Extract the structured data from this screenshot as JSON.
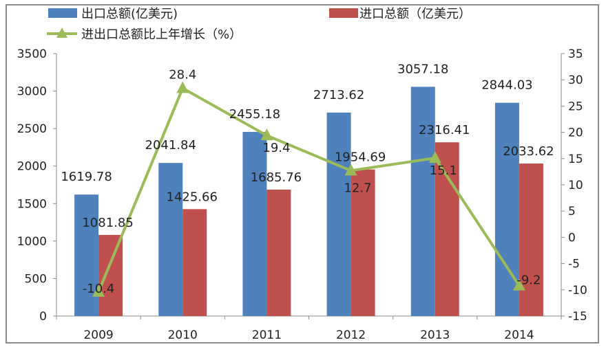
{
  "chart_data": {
    "type": "bar+line",
    "categories": [
      "2009",
      "2010",
      "2011",
      "2012",
      "2013",
      "2014"
    ],
    "series": [
      {
        "name": "出口总额(亿美元)",
        "type": "bar",
        "axis": "left",
        "color": "#4F81BD",
        "values": [
          1619.78,
          2041.84,
          2455.18,
          2713.62,
          3057.18,
          2844.03
        ],
        "labels": [
          "1619.78",
          "2041.84",
          "2455.18",
          "2713.62",
          "3057.18",
          "2844.03"
        ]
      },
      {
        "name": "进口总额（亿美元）",
        "type": "bar",
        "axis": "left",
        "color": "#C0504D",
        "values": [
          1081.85,
          1425.66,
          1685.76,
          1954.69,
          2316.41,
          2033.62
        ],
        "labels": [
          "1081.85",
          "1425.66",
          "1685.76",
          "1954.69",
          "2316.41",
          "2033.62"
        ]
      },
      {
        "name": "进出口总额比上年增长（%）",
        "type": "line",
        "axis": "right",
        "color": "#9BBB59",
        "marker": "triangle",
        "values": [
          -10.4,
          28.4,
          19.4,
          12.7,
          15.1,
          -9.2
        ],
        "labels": [
          "-10.4",
          "28.4",
          "19.4",
          "12.7",
          "15.1",
          "-9.2"
        ]
      }
    ],
    "left_axis": {
      "ylim": [
        0,
        3500
      ],
      "ticks": [
        "0",
        "500",
        "1000",
        "1500",
        "2000",
        "2500",
        "3000",
        "3500"
      ]
    },
    "right_axis": {
      "ylim": [
        -15,
        35
      ],
      "ticks": [
        "-15",
        "-10",
        "-5",
        "0",
        "5",
        "10",
        "15",
        "20",
        "25",
        "30",
        "35"
      ]
    },
    "grid": false,
    "legend": "top"
  }
}
